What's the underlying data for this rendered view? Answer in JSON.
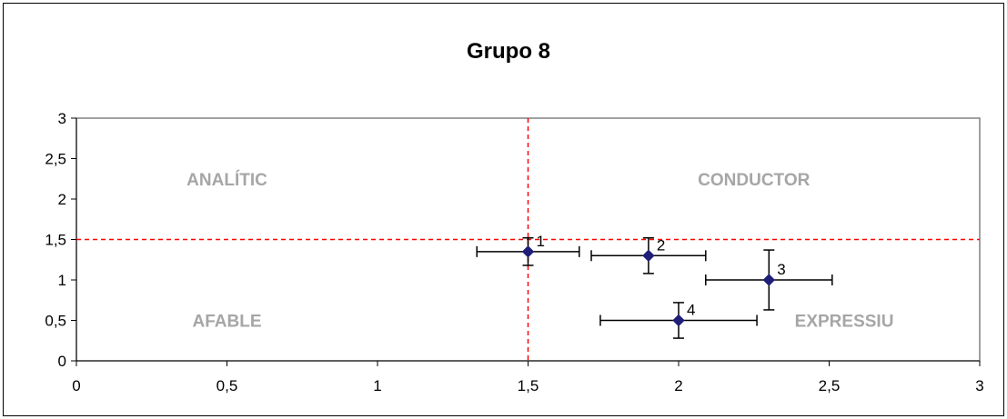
{
  "chart_data": {
    "type": "scatter",
    "title": "Grupo 8",
    "xlim": [
      0,
      3
    ],
    "ylim": [
      0,
      3
    ],
    "x_ticks": [
      0,
      0.5,
      1,
      1.5,
      2,
      2.5,
      3
    ],
    "x_tick_labels": [
      "0",
      "0,5",
      "1",
      "1,5",
      "2",
      "2,5",
      "3"
    ],
    "y_ticks": [
      0,
      0.5,
      1,
      1.5,
      2,
      2.5,
      3
    ],
    "y_tick_labels": [
      "0",
      "0,5",
      "1",
      "1,5",
      "2",
      "2,5",
      "3"
    ],
    "grid": false,
    "reference_lines": {
      "x": 1.5,
      "y": 1.5,
      "color": "#ff0000",
      "style": "dashed"
    },
    "points": [
      {
        "label": "1",
        "x": 1.5,
        "y": 1.35,
        "x_err": 0.17,
        "y_err": 0.17
      },
      {
        "label": "2",
        "x": 1.9,
        "y": 1.3,
        "x_err": 0.19,
        "y_err": 0.22
      },
      {
        "label": "3",
        "x": 2.3,
        "y": 1.0,
        "x_err": 0.21,
        "y_err": 0.37
      },
      {
        "label": "4",
        "x": 2.0,
        "y": 0.5,
        "x_err": 0.26,
        "y_err": 0.22
      }
    ],
    "quadrant_labels": [
      {
        "text": "ANALÍTIC",
        "x": 0.5,
        "y": 2.25
      },
      {
        "text": "CONDUCTOR",
        "x": 2.25,
        "y": 2.25
      },
      {
        "text": "AFABLE",
        "x": 0.5,
        "y": 0.5
      },
      {
        "text": "EXPRESSIU",
        "x": 2.55,
        "y": 0.5
      }
    ],
    "colors": {
      "marker": "#1f1f7a",
      "reference": "#ff0000",
      "quadrant_text": "#a6a6a6"
    }
  }
}
